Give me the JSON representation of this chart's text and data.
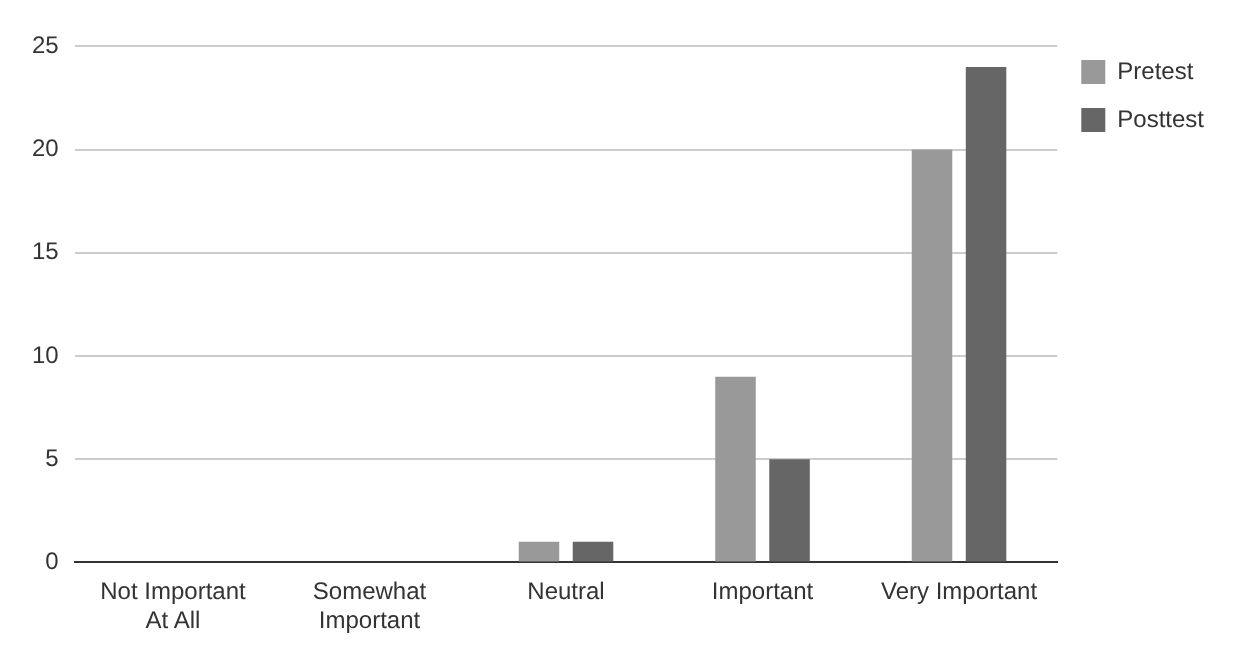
{
  "chart_data": {
    "type": "bar",
    "categories": [
      "Not Important At All",
      "Somewhat Important",
      "Neutral",
      "Important",
      "Very Important"
    ],
    "series": [
      {
        "name": "Pretest",
        "color": "#999999",
        "values": [
          0,
          0,
          1,
          9,
          20
        ]
      },
      {
        "name": "Posttest",
        "color": "#666666",
        "values": [
          0,
          0,
          1,
          5,
          24
        ]
      }
    ],
    "ylim": [
      0,
      25
    ],
    "yticks": [
      0,
      5,
      10,
      15,
      20,
      25
    ],
    "grid": "y",
    "legend": "top right"
  }
}
